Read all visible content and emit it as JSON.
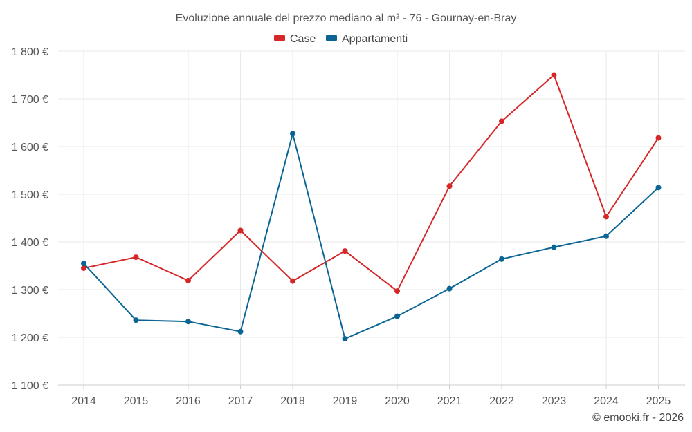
{
  "chart_data": {
    "type": "line",
    "title": "Evoluzione annuale del prezzo mediano al m² - 76 - Gournay-en-Bray",
    "x": [
      "2014",
      "2015",
      "2016",
      "2017",
      "2018",
      "2019",
      "2020",
      "2021",
      "2022",
      "2023",
      "2024",
      "2025"
    ],
    "series": [
      {
        "name": "Case",
        "color": "#d62728",
        "values": [
          1345,
          1368,
          1319,
          1424,
          1318,
          1381,
          1297,
          1517,
          1653,
          1750,
          1453,
          1618
        ]
      },
      {
        "name": "Appartamenti",
        "color": "#0b6594",
        "values": [
          1355,
          1236,
          1233,
          1212,
          1627,
          1197,
          1244,
          1302,
          1364,
          1389,
          1412,
          1514
        ]
      }
    ],
    "ylim": [
      1100,
      1800
    ],
    "yticks": [
      1100,
      1200,
      1300,
      1400,
      1500,
      1600,
      1700,
      1800
    ],
    "ytick_labels": [
      "1 100 €",
      "1 200 €",
      "1 300 €",
      "1 400 €",
      "1 500 €",
      "1 600 €",
      "1 700 €",
      "1 800 €"
    ],
    "xlabel": "",
    "ylabel": "",
    "grid": true,
    "legend": "top-center"
  },
  "credit": "© emooki.fr - 2026"
}
